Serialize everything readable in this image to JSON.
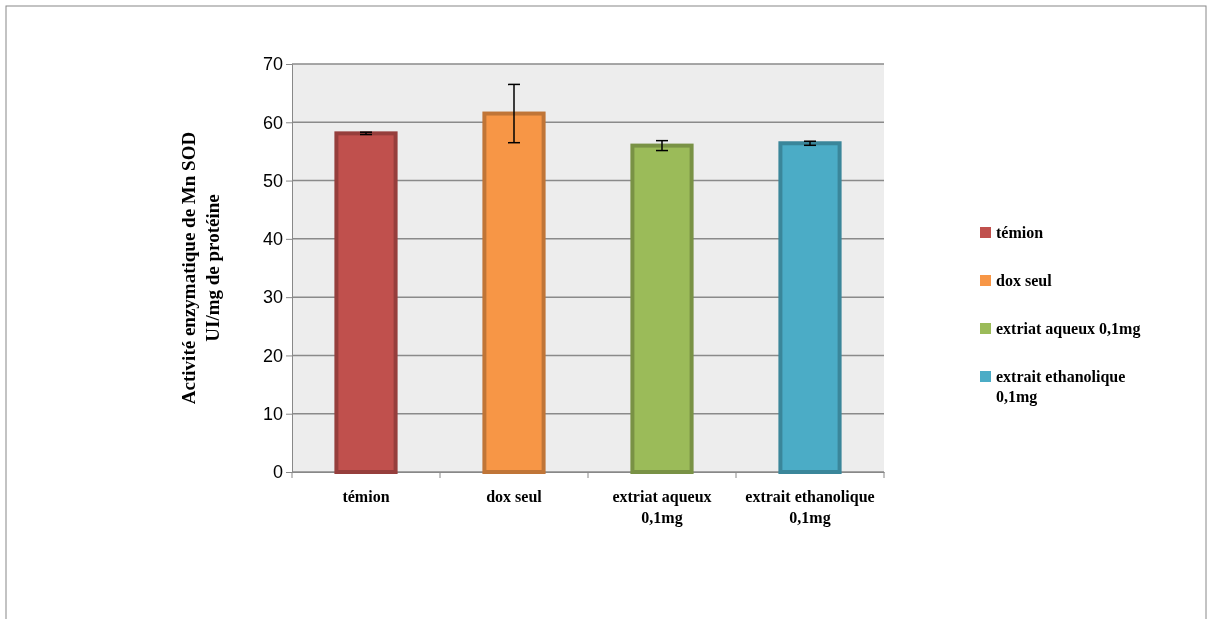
{
  "chart_data": {
    "type": "bar",
    "ylabel": "Activité enzymatique de Mn SOD UI/mg de protéine",
    "categories": [
      "témion",
      "dox seul",
      "extriat aqueux 0,1mg",
      "extrait ethanolique 0,1mg"
    ],
    "series": [
      {
        "name": "témion",
        "color": "#c0504d",
        "values": [
          58.1,
          null,
          null,
          null
        ],
        "errors": [
          0.2,
          null,
          null,
          null
        ]
      },
      {
        "name": "dox seul",
        "color": "#f79646",
        "values": [
          null,
          61.5,
          null,
          null
        ],
        "errors": [
          null,
          5,
          null,
          null
        ]
      },
      {
        "name": "extriat aqueux 0,1mg",
        "color": "#9bbb59",
        "values": [
          null,
          null,
          56.0,
          null
        ],
        "errors": [
          null,
          null,
          0.85,
          null
        ]
      },
      {
        "name": "extrait ethanolique 0,1mg",
        "color": "#4bacc6",
        "values": [
          null,
          null,
          null,
          56.4
        ],
        "errors": [
          null,
          null,
          null,
          0.35
        ]
      }
    ],
    "ylim": [
      0,
      70
    ],
    "yticks": [
      0,
      10,
      20,
      30,
      40,
      50,
      60,
      70
    ],
    "grid": "y",
    "legend": "right"
  }
}
